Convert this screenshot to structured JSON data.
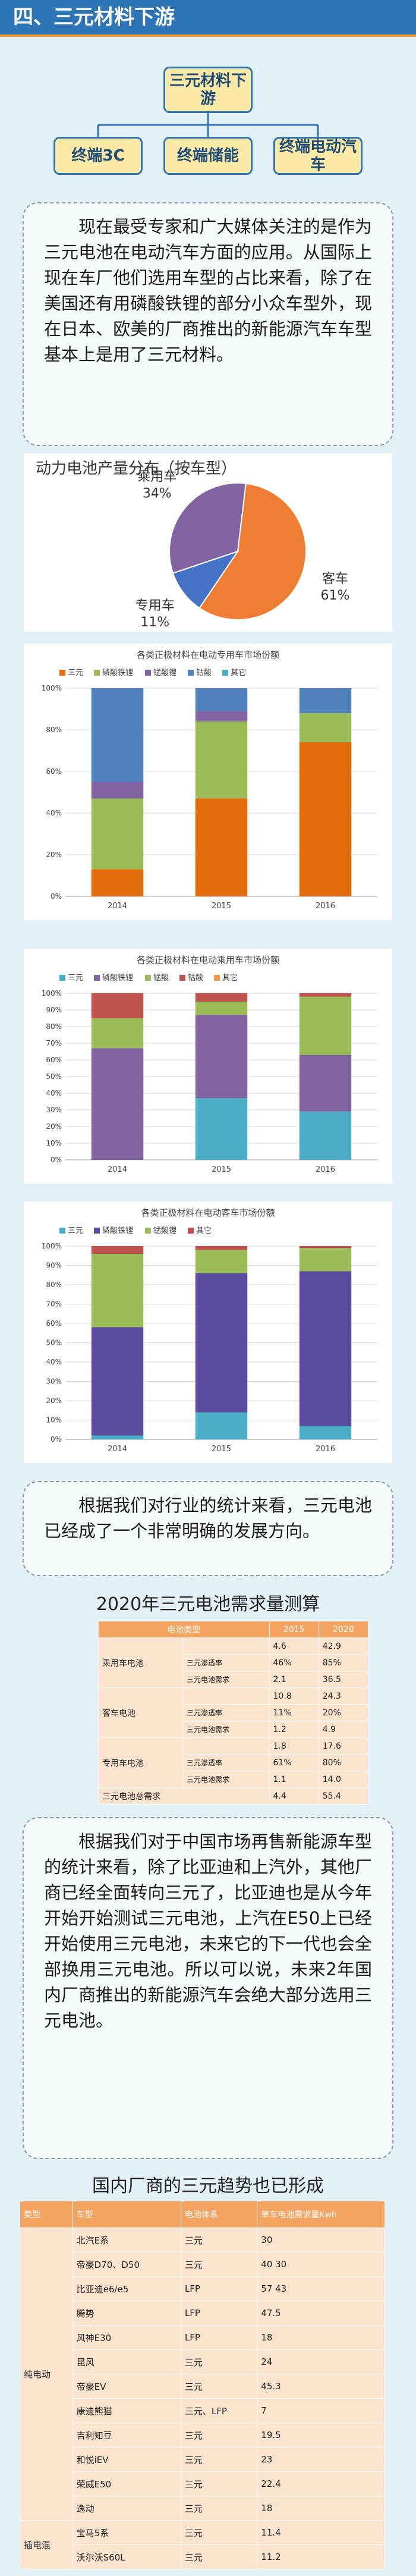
{
  "header": {
    "title": "四、三元材料下游"
  },
  "diagram": {
    "root": "三元材料下游",
    "children": [
      "终端3C",
      "终端储能",
      "终端电动汽车"
    ]
  },
  "paragraphs": [
    "现在最受专家和广大媒体关注的是作为三元电池在电动汽车方面的应用。从国际上现在车厂他们选用车型的占比来看，除了在美国还有用磷酸铁锂的部分小众车型外，现在日本、欧美的厂商推出的新能源汽车车型基本上是用了三元材料。",
    "根据我们对行业的统计来看，三元电池已经成了一个非常明确的发展方向。",
    "根据我们对于中国市场再售新能源车型的统计来看，除了比亚迪和上汽外，其他厂商已经全面转向三元了，比亚迪也是从今年开始开始测试三元电池，上汽在E50上已经开始使用三元电池，未来它的下一代也会全部换用三元电池。所以可以说，未来2年国内厂商推出的新能源汽车会绝大部分选用三元电池。"
  ],
  "chart_data": [
    {
      "type": "pie",
      "title": "动力电池产量分布（按车型）",
      "categories": [
        "客车",
        "专用车",
        "乘用车"
      ],
      "values": [
        61,
        11,
        34
      ],
      "value_labels": [
        "61%",
        "11%",
        "34%"
      ],
      "colors": [
        "#ed7d31",
        "#4472c4",
        "#8064a2"
      ]
    },
    {
      "type": "stacked_bar",
      "title": "各类正极材料在电动专用车市场份额",
      "categories": [
        "2014",
        "2015",
        "2016"
      ],
      "series": [
        {
          "name": "三元",
          "color": "#e46c0a",
          "values": [
            13,
            47,
            74
          ]
        },
        {
          "name": "磷酸铁锂",
          "color": "#9bbb59",
          "values": [
            34,
            37,
            14
          ]
        },
        {
          "name": "锰酸锂",
          "color": "#8064a2",
          "values": [
            8,
            5,
            0
          ]
        },
        {
          "name": "钴酸",
          "color": "#4f81bd",
          "values": [
            45,
            11,
            12
          ]
        },
        {
          "name": "其它",
          "color": "#4bacc6",
          "values": [
            0,
            0,
            0
          ]
        }
      ],
      "ylim": [
        0,
        100
      ],
      "yticks": [
        {
          "value": 0,
          "label": "0%"
        },
        {
          "value": 20,
          "label": "20%"
        },
        {
          "value": 40,
          "label": "40%"
        },
        {
          "value": 60,
          "label": "60%"
        },
        {
          "value": 80,
          "label": "80%"
        },
        {
          "value": 100,
          "label": "100%"
        }
      ],
      "grid": true
    },
    {
      "type": "stacked_bar",
      "title": "各类正极材料在电动乘用车市场份额",
      "categories": [
        "2014",
        "2015",
        "2016"
      ],
      "series": [
        {
          "name": "三元",
          "color": "#4bacc6",
          "values": [
            0,
            37,
            29
          ]
        },
        {
          "name": "磷酸铁锂",
          "color": "#8064a2",
          "values": [
            67,
            50,
            34
          ]
        },
        {
          "name": "锰酸",
          "color": "#9bbb59",
          "values": [
            18,
            8,
            35
          ]
        },
        {
          "name": "钴酸",
          "color": "#c0504d",
          "values": [
            15,
            5,
            2
          ]
        },
        {
          "name": "其它",
          "color": "#f79646",
          "values": [
            0,
            0,
            0
          ]
        }
      ],
      "ylim": [
        0,
        100
      ],
      "yticks": [
        {
          "value": 0,
          "label": "0%"
        },
        {
          "value": 10,
          "label": "10%"
        },
        {
          "value": 20,
          "label": "20%"
        },
        {
          "value": 30,
          "label": "30%"
        },
        {
          "value": 40,
          "label": "40%"
        },
        {
          "value": 50,
          "label": "50%"
        },
        {
          "value": 60,
          "label": "60%"
        },
        {
          "value": 70,
          "label": "70%"
        },
        {
          "value": 80,
          "label": "80%"
        },
        {
          "value": 90,
          "label": "90%"
        },
        {
          "value": 100,
          "label": "100%"
        }
      ],
      "grid": true
    },
    {
      "type": "stacked_bar",
      "title": "各类正极材料在电动客车市场份额",
      "categories": [
        "2014",
        "2015",
        "2016"
      ],
      "series": [
        {
          "name": "三元",
          "color": "#4bacc6",
          "values": [
            2,
            14,
            7
          ]
        },
        {
          "name": "磷酸铁锂",
          "color": "#5b4a9e",
          "values": [
            56,
            72,
            80
          ]
        },
        {
          "name": "锰酸锂",
          "color": "#9bbb59",
          "values": [
            38,
            12,
            12
          ]
        },
        {
          "name": "其它",
          "color": "#c0504d",
          "values": [
            4,
            2,
            1
          ]
        }
      ],
      "ylim": [
        0,
        100
      ],
      "yticks": [
        {
          "value": 0,
          "label": "0%"
        },
        {
          "value": 10,
          "label": "10%"
        },
        {
          "value": 20,
          "label": "20%"
        },
        {
          "value": 30,
          "label": "30%"
        },
        {
          "value": 40,
          "label": "40%"
        },
        {
          "value": 50,
          "label": "50%"
        },
        {
          "value": 60,
          "label": "60%"
        },
        {
          "value": 70,
          "label": "70%"
        },
        {
          "value": 80,
          "label": "80%"
        },
        {
          "value": 90,
          "label": "90%"
        },
        {
          "value": 100,
          "label": "100%"
        }
      ],
      "grid": true
    }
  ],
  "table1": {
    "title": "2020年三元电池需求量测算",
    "header": [
      "电池类型",
      "2015",
      "2020"
    ],
    "groups": [
      {
        "type": "乘用车电池",
        "values": [
          "4.6",
          "42.9"
        ],
        "rows": [
          {
            "label": "三元渗透率",
            "values": [
              "46%",
              "85%"
            ]
          },
          {
            "label": "三元电池需求",
            "values": [
              "2.1",
              "36.5"
            ]
          }
        ]
      },
      {
        "type": "客车电池",
        "values": [
          "10.8",
          "24.3"
        ],
        "rows": [
          {
            "label": "三元渗透率",
            "values": [
              "11%",
              "20%"
            ]
          },
          {
            "label": "三元电池需求",
            "values": [
              "1.2",
              "4.9"
            ]
          }
        ]
      },
      {
        "type": "专用车电池",
        "values": [
          "1.8",
          "17.6"
        ],
        "rows": [
          {
            "label": "三元渗透率",
            "values": [
              "61%",
              "80%"
            ]
          },
          {
            "label": "三元电池需求",
            "values": [
              "1.1",
              "14.0"
            ]
          }
        ]
      },
      {
        "type": "三元电池总需求",
        "values": [
          "4.4",
          "55.4"
        ],
        "rows": []
      }
    ]
  },
  "table2": {
    "title": "国内厂商的三元趋势也已形成",
    "header": [
      "类型",
      "车型",
      "电池体系",
      "单车电池需求量Kwh"
    ],
    "groups": [
      {
        "type": "纯电动",
        "rows": [
          [
            "北汽E系",
            "三元",
            "30"
          ],
          [
            "帝豪D70、D50",
            "三元",
            "40  30"
          ],
          [
            "比亚迪e6/e5",
            "LFP",
            "57  43"
          ],
          [
            "腾势",
            "LFP",
            "47.5"
          ],
          [
            "风神E30",
            "LFP",
            "18"
          ],
          [
            "昆风",
            "三元",
            "24"
          ],
          [
            "帝豪EV",
            "三元",
            "45.3"
          ],
          [
            "康迪熊猫",
            "三元、LFP",
            "7"
          ],
          [
            "吉利知豆",
            "三元",
            "19.5"
          ],
          [
            "和悦iEV",
            "三元",
            "23"
          ],
          [
            "荣威E50",
            "三元",
            "22.4"
          ],
          [
            "逸动",
            "三元",
            "18"
          ]
        ]
      },
      {
        "type": "插电混",
        "rows": [
          [
            "宝马5系",
            "三元",
            "11.4"
          ],
          [
            "沃尔沃S60L",
            "三元",
            "11.2"
          ]
        ]
      }
    ]
  }
}
